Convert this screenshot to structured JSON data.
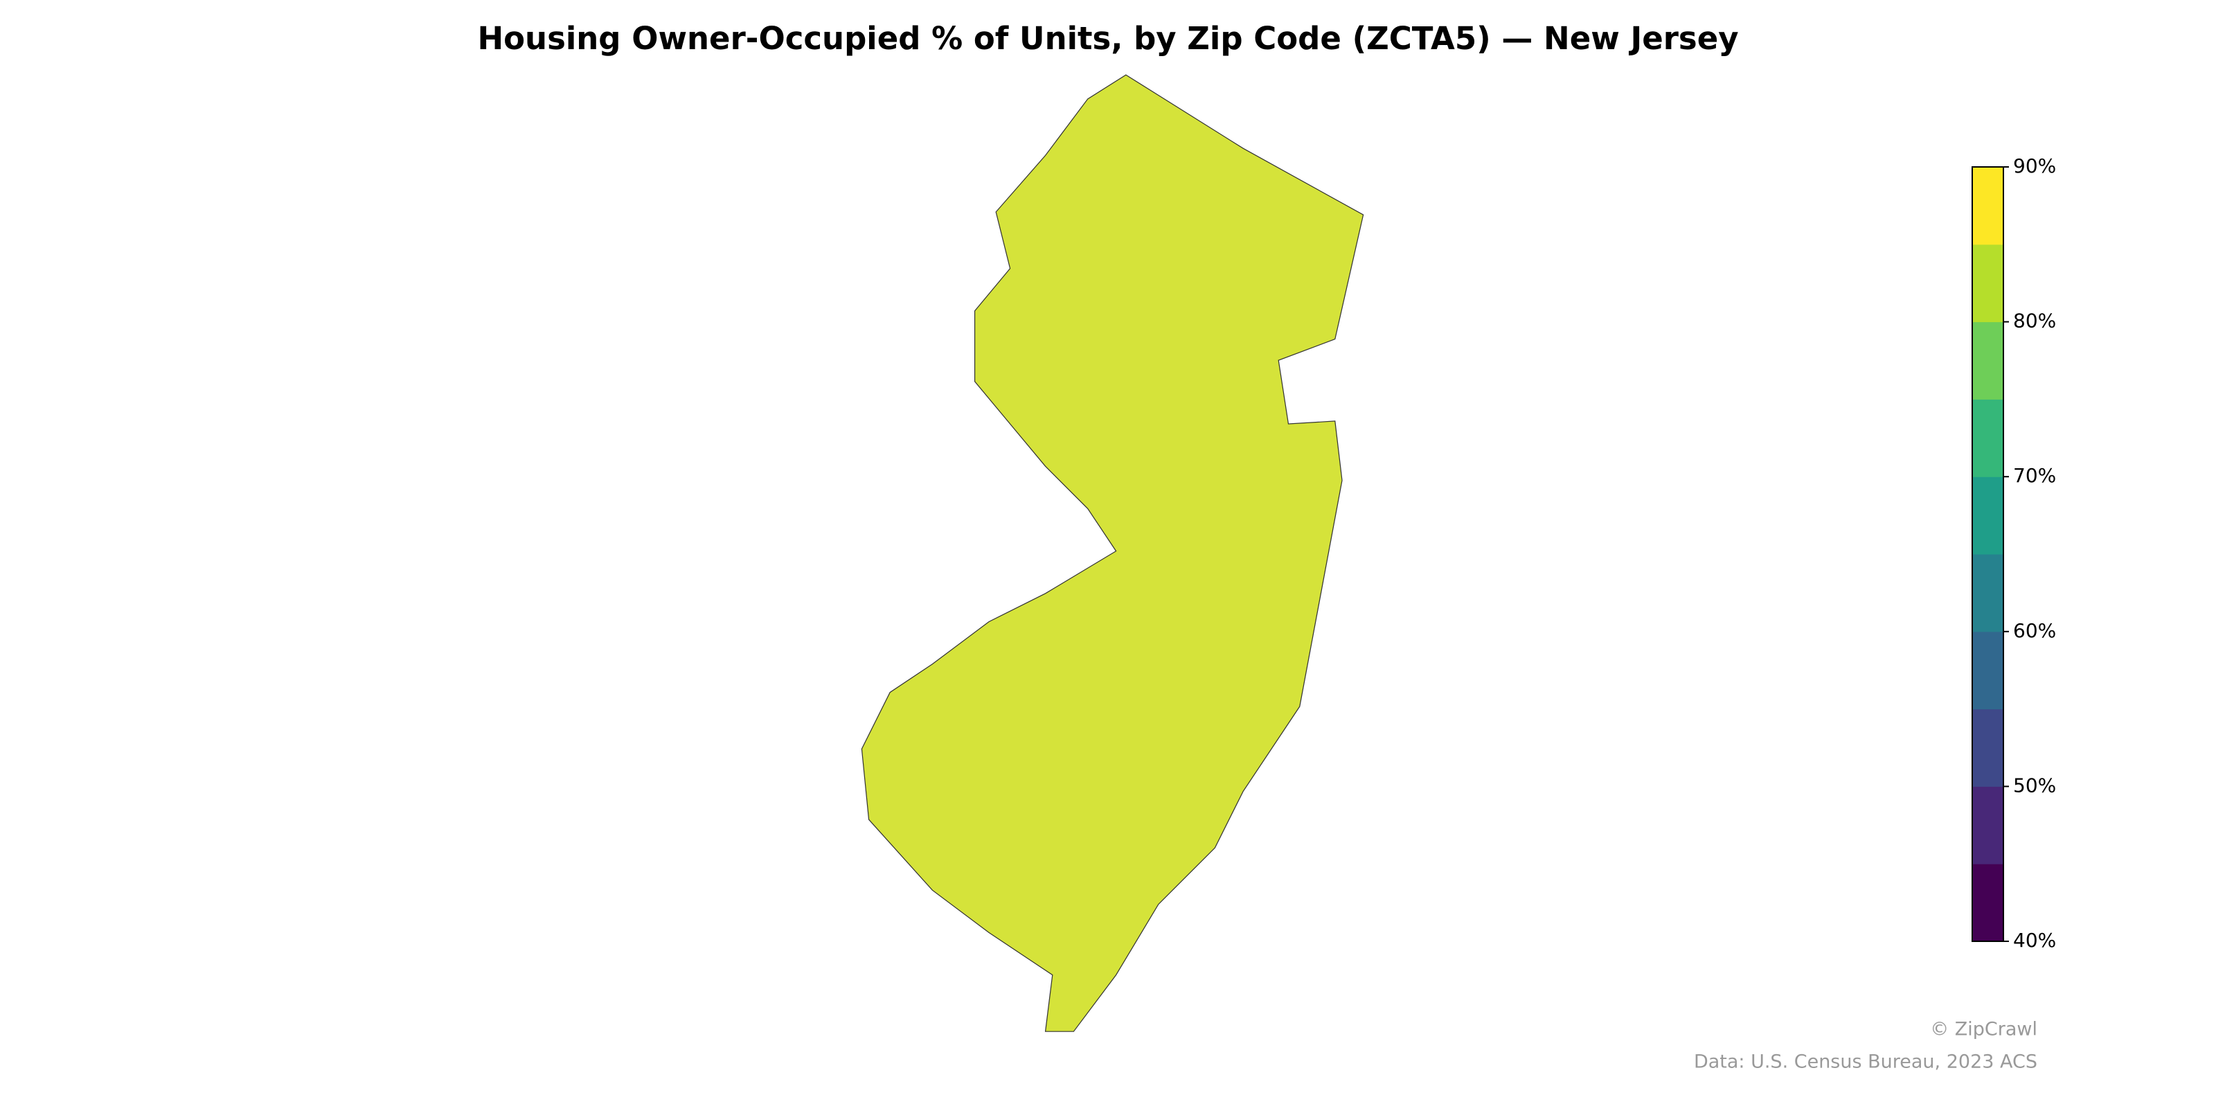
{
  "title": "Housing Owner-Occupied % of Units, by Zip Code (ZCTA5) — New Jersey",
  "colorbar": {
    "clim": [
      40,
      90
    ],
    "colors": [
      "#440154",
      "#482878",
      "#3e4989",
      "#31688e",
      "#26828e",
      "#1f9e89",
      "#35b779",
      "#6ece58",
      "#b5de2b",
      "#fde725"
    ],
    "ticks": [
      {
        "value": 40,
        "label": "40%"
      },
      {
        "value": 50,
        "label": "50%"
      },
      {
        "value": 60,
        "label": "60%"
      },
      {
        "value": 70,
        "label": "70%"
      },
      {
        "value": 80,
        "label": "80%"
      },
      {
        "value": 90,
        "label": "90%"
      }
    ]
  },
  "credit": "© ZipCrawl",
  "source": "Data: U.S. Census Bureau, 2023 ACS"
}
